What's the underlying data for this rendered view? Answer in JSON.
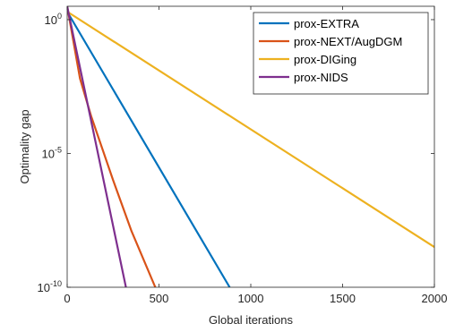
{
  "chart_data": {
    "type": "line",
    "title": "",
    "xlabel": "Global iterations",
    "ylabel": "Optimality gap",
    "xlim": [
      0,
      2000
    ],
    "ylim_log10": [
      -10,
      0.5
    ],
    "y_scale": "log",
    "grid": false,
    "legend_position": "top-right",
    "x_ticks": [
      0,
      500,
      1000,
      1500,
      2000
    ],
    "x_tick_labels": [
      "0",
      "500",
      "1000",
      "1500",
      "2000"
    ],
    "y_ticks_log10": [
      0,
      -5,
      -10
    ],
    "y_tick_labels": [
      {
        "base": "10",
        "exp": "0"
      },
      {
        "base": "10",
        "exp": "-5"
      },
      {
        "base": "10",
        "exp": "-10"
      }
    ],
    "series": [
      {
        "name": "prox-EXTRA",
        "color": "#0072BD",
        "points": [
          [
            0,
            0.3
          ],
          [
            885,
            -10
          ]
        ]
      },
      {
        "name": "prox-NEXT/AugDGM",
        "color": "#D95319",
        "points": [
          [
            0,
            0.5
          ],
          [
            70,
            -2.2
          ],
          [
            130,
            -3.6
          ],
          [
            250,
            -6.0
          ],
          [
            350,
            -7.9
          ],
          [
            480,
            -10
          ]
        ]
      },
      {
        "name": "prox-DIGing",
        "color": "#EDB120",
        "points": [
          [
            0,
            0.3
          ],
          [
            2000,
            -8.5
          ]
        ]
      },
      {
        "name": "prox-NIDS",
        "color": "#7E2F8E",
        "points": [
          [
            0,
            0.5
          ],
          [
            320,
            -10
          ]
        ]
      }
    ]
  }
}
